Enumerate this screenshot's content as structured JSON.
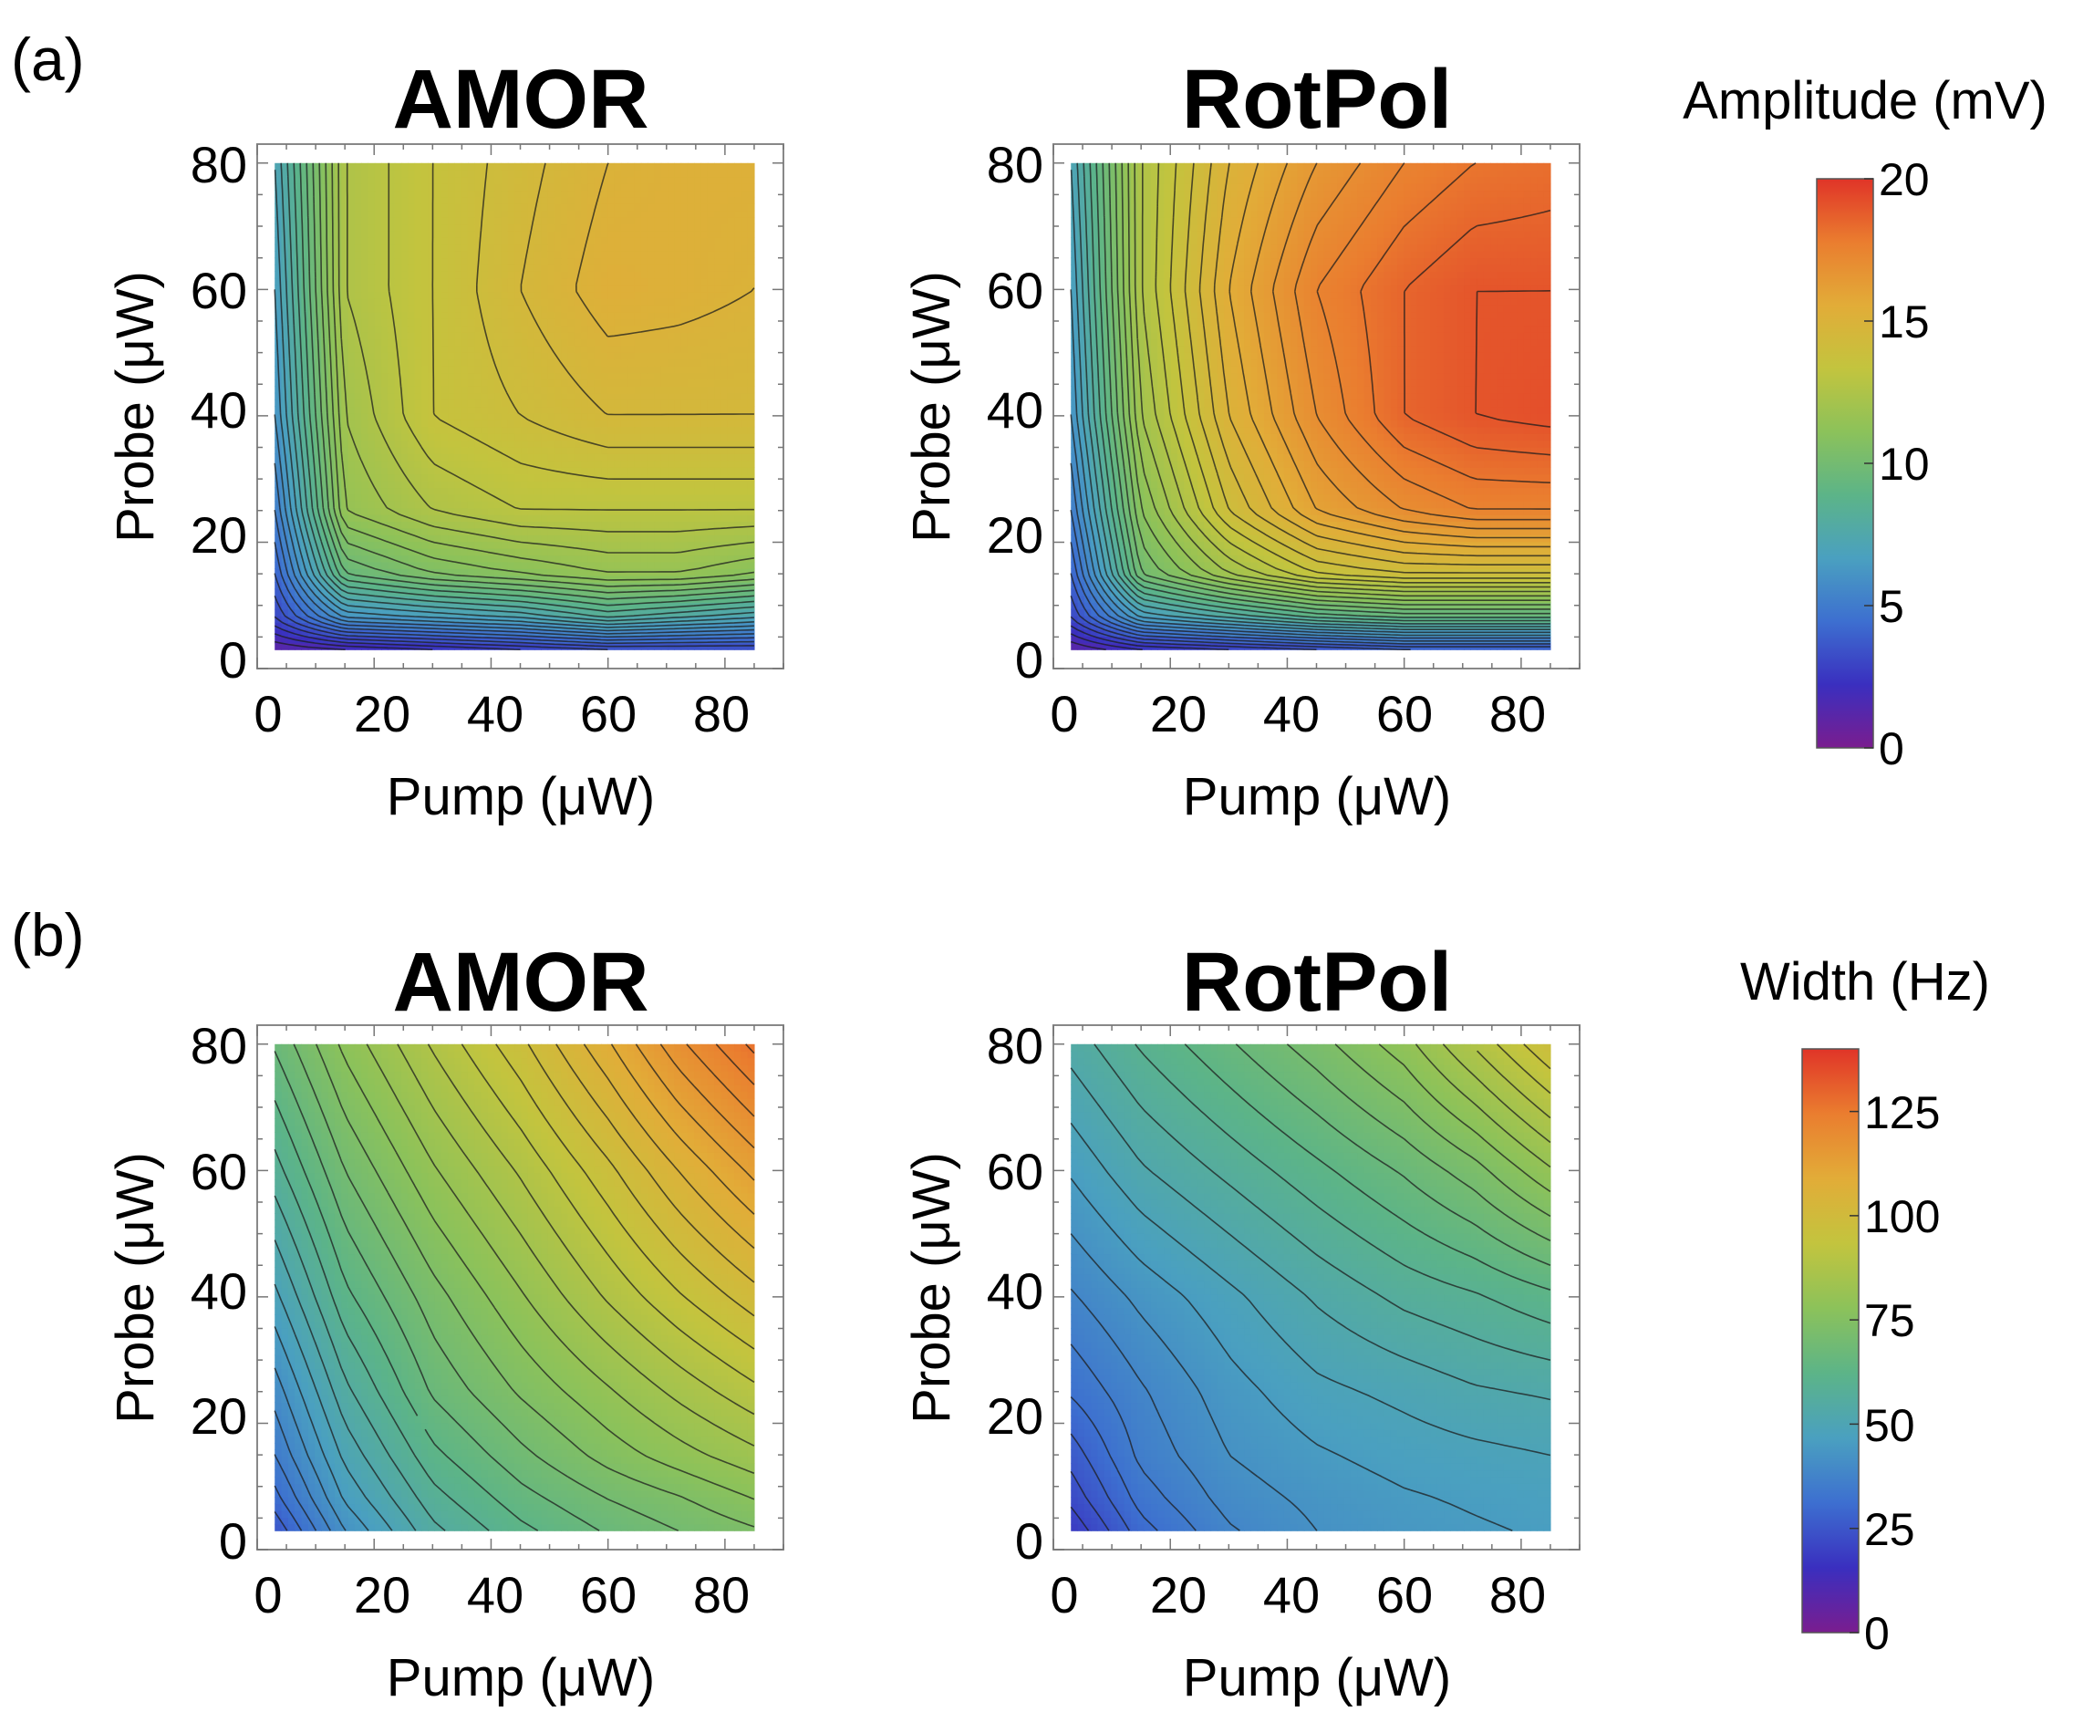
{
  "panel_labels": [
    "(a)",
    "(b)"
  ],
  "chart_data": [
    {
      "type": "heatmap",
      "panel": "(a)",
      "title": "AMOR",
      "xlabel": "Pump (μW)",
      "ylabel": "Probe (μW)",
      "xlim": [
        0,
        90
      ],
      "ylim": [
        0,
        83
      ],
      "xticks": [
        "0",
        "20",
        "40",
        "60",
        "80"
      ],
      "yticks": [
        "0",
        "20",
        "40",
        "60",
        "80"
      ],
      "x": [
        3,
        15,
        30,
        45,
        60,
        72,
        85
      ],
      "y": [
        3,
        8,
        15,
        25,
        40,
        60,
        80
      ],
      "z": [
        [
          1.0,
          1.5,
          2.0,
          2.5,
          3.0,
          3.0,
          3.0
        ],
        [
          3.0,
          6.0,
          6.5,
          7.0,
          8.0,
          7.5,
          7.0
        ],
        [
          4.0,
          9.5,
          10.5,
          11.0,
          11.5,
          11.5,
          11.0
        ],
        [
          5.0,
          11.5,
          12.5,
          13.0,
          13.0,
          13.0,
          13.0
        ],
        [
          6.0,
          12.0,
          13.5,
          14.0,
          14.5,
          14.5,
          14.5
        ],
        [
          6.5,
          12.5,
          13.5,
          14.5,
          15.3,
          15.2,
          15.0
        ],
        [
          7.0,
          12.5,
          13.5,
          14.3,
          15.0,
          15.2,
          15.2
        ]
      ],
      "zlim": [
        0,
        20
      ]
    },
    {
      "type": "heatmap",
      "panel": "(a)",
      "title": "RotPol",
      "xlabel": "Pump (μW)",
      "ylabel": "Probe (μW)",
      "xlim": [
        0,
        90
      ],
      "ylim": [
        0,
        83
      ],
      "xticks": [
        "0",
        "20",
        "40",
        "60",
        "80"
      ],
      "yticks": [
        "0",
        "20",
        "40",
        "60",
        "80"
      ],
      "x": [
        3,
        15,
        30,
        45,
        60,
        72,
        85
      ],
      "y": [
        3,
        8,
        15,
        25,
        40,
        60,
        80
      ],
      "z": [
        [
          1.0,
          2.0,
          2.5,
          3.0,
          3.5,
          3.5,
          3.5
        ],
        [
          3.0,
          6.5,
          7.5,
          8.5,
          9.0,
          9.0,
          9.0
        ],
        [
          4.0,
          10.0,
          12.0,
          13.5,
          14.0,
          14.0,
          14.0
        ],
        [
          5.0,
          11.0,
          14.0,
          16.0,
          17.0,
          17.5,
          17.5
        ],
        [
          6.0,
          12.0,
          15.0,
          17.0,
          18.5,
          19.0,
          19.2
        ],
        [
          6.5,
          12.5,
          15.5,
          17.5,
          18.5,
          19.0,
          19.0
        ],
        [
          7.0,
          12.5,
          15.0,
          16.5,
          17.5,
          18.0,
          18.2
        ]
      ],
      "zlim": [
        0,
        20
      ]
    },
    {
      "type": "heatmap",
      "panel": "(b)",
      "title": "AMOR",
      "xlabel": "Pump (μW)",
      "ylabel": "Probe (μW)",
      "xlim": [
        0,
        90
      ],
      "ylim": [
        0,
        83
      ],
      "xticks": [
        "0",
        "20",
        "40",
        "60",
        "80"
      ],
      "yticks": [
        "0",
        "20",
        "40",
        "60",
        "80"
      ],
      "x": [
        3,
        15,
        30,
        45,
        60,
        72,
        85
      ],
      "y": [
        3,
        8,
        15,
        25,
        40,
        60,
        80
      ],
      "z": [
        [
          25,
          42,
          55,
          62,
          67,
          70,
          73
        ],
        [
          30,
          46,
          58,
          65,
          70,
          73,
          77
        ],
        [
          35,
          50,
          62,
          69,
          75,
          79,
          83
        ],
        [
          40,
          55,
          67,
          74,
          80,
          85,
          90
        ],
        [
          48,
          62,
          72,
          80,
          88,
          94,
          100
        ],
        [
          58,
          70,
          80,
          88,
          97,
          105,
          113
        ],
        [
          67,
          78,
          88,
          97,
          108,
          118,
          127
        ]
      ],
      "zlim": [
        0,
        140
      ]
    },
    {
      "type": "heatmap",
      "panel": "(b)",
      "title": "RotPol",
      "xlabel": "Pump (μW)",
      "ylabel": "Probe (μW)",
      "xlim": [
        0,
        90
      ],
      "ylim": [
        0,
        83
      ],
      "xticks": [
        "0",
        "20",
        "40",
        "60",
        "80"
      ],
      "yticks": [
        "0",
        "20",
        "40",
        "60",
        "80"
      ],
      "x": [
        3,
        15,
        30,
        45,
        60,
        72,
        85
      ],
      "y": [
        3,
        8,
        15,
        25,
        40,
        60,
        80
      ],
      "z": [
        [
          18,
          30,
          38,
          42,
          44,
          45,
          46
        ],
        [
          22,
          33,
          40,
          43,
          45,
          46,
          47
        ],
        [
          26,
          36,
          42,
          45,
          47,
          48,
          49
        ],
        [
          32,
          38,
          44,
          48,
          50,
          52,
          53
        ],
        [
          38,
          43,
          48,
          53,
          57,
          59,
          62
        ],
        [
          46,
          52,
          57,
          62,
          67,
          72,
          80
        ],
        [
          54,
          60,
          66,
          72,
          79,
          88,
          98
        ]
      ],
      "zlim": [
        0,
        140
      ]
    }
  ],
  "colorbars": [
    {
      "title": "Amplitude (mV)",
      "ticks": [
        "0",
        "5",
        "10",
        "15",
        "20"
      ],
      "min": 0,
      "max": 20
    },
    {
      "title": "Width (Hz)",
      "ticks": [
        "0",
        "25",
        "50",
        "75",
        "100",
        "125"
      ],
      "min": 0,
      "max": 140
    }
  ],
  "colormap": [
    "#7a1d8f",
    "#3a2fbf",
    "#3d6fd0",
    "#4aa0c0",
    "#5cb488",
    "#8cc25a",
    "#c3c43e",
    "#e2ac38",
    "#ea7d2f",
    "#e03428"
  ]
}
